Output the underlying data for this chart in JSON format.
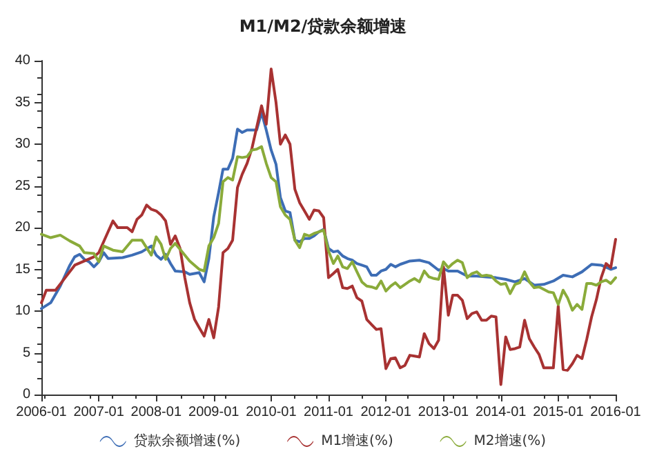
{
  "chart_data": {
    "type": "line",
    "title": "M1/M2/贷款余额增速",
    "xlim": [
      "2006-01",
      "2016-01"
    ],
    "xticks": [
      "2006-01",
      "2007-01",
      "2008-01",
      "2009-01",
      "2010-01",
      "2011-01",
      "2012-01",
      "2013-01",
      "2014-01",
      "2015-01",
      "2016-01"
    ],
    "ylim": [
      0,
      40
    ],
    "yticks": [
      0,
      5,
      10,
      15,
      20,
      25,
      30,
      35,
      40
    ],
    "grid": false,
    "legend": "bottom",
    "marker": "none",
    "line_style": "solid",
    "series": [
      {
        "name": "贷款余额增速(%)",
        "color": "#3d6db5",
        "x": [
          "2006-01",
          "2006-03",
          "2006-05",
          "2006-07",
          "2006-08",
          "2006-09",
          "2006-10",
          "2006-11",
          "2006-12",
          "2007-01",
          "2007-02",
          "2007-03",
          "2007-06",
          "2007-08",
          "2007-10",
          "2007-12",
          "2008-01",
          "2008-02",
          "2008-03",
          "2008-04",
          "2008-05",
          "2008-07",
          "2008-08",
          "2008-09",
          "2008-10",
          "2008-11",
          "2008-12",
          "2009-01",
          "2009-02",
          "2009-03",
          "2009-04",
          "2009-05",
          "2009-06",
          "2009-07",
          "2009-08",
          "2009-09",
          "2009-10",
          "2009-11",
          "2009-12",
          "2010-01",
          "2010-02",
          "2010-03",
          "2010-04",
          "2010-05",
          "2010-06",
          "2010-07",
          "2010-08",
          "2010-09",
          "2010-10",
          "2010-11",
          "2010-12",
          "2011-01",
          "2011-02",
          "2011-03",
          "2011-04",
          "2011-05",
          "2011-06",
          "2011-07",
          "2011-08",
          "2011-09",
          "2011-10",
          "2011-11",
          "2011-12",
          "2012-01",
          "2012-02",
          "2012-03",
          "2012-04",
          "2012-06",
          "2012-08",
          "2012-10",
          "2012-12",
          "2013-01",
          "2013-02",
          "2013-04",
          "2013-06",
          "2013-08",
          "2013-10",
          "2013-12",
          "2014-02",
          "2014-04",
          "2014-06",
          "2014-08",
          "2014-10",
          "2014-12",
          "2015-02",
          "2015-04",
          "2015-06",
          "2015-08",
          "2015-10",
          "2015-12",
          "2016-01"
        ],
        "values": [
          10.3,
          11,
          13,
          15.5,
          16.5,
          16.8,
          16.2,
          15.9,
          15.3,
          15.9,
          17,
          16.3,
          16.4,
          16.7,
          17.1,
          17.8,
          16.7,
          16.2,
          16.8,
          15.7,
          14.8,
          14.7,
          14.4,
          14.5,
          14.6,
          13.5,
          16.3,
          21.3,
          24.2,
          27,
          27,
          28.3,
          31.8,
          31.4,
          31.7,
          31.7,
          31.7,
          33.8,
          31.7,
          29.3,
          27.6,
          23.6,
          22,
          21.8,
          18.5,
          18.3,
          18.7,
          18.7,
          19,
          19.5,
          19.8,
          17.5,
          17.1,
          17.2,
          16.6,
          16.3,
          16.1,
          15.7,
          15.5,
          15.3,
          14.3,
          14.3,
          14.8,
          15,
          15.6,
          15.3,
          15.6,
          16,
          16.1,
          15.8,
          14.9,
          15.1,
          14.8,
          14.8,
          14.2,
          14.2,
          14.1,
          14,
          13.8,
          13.5,
          13.9,
          13.1,
          13.2,
          13.6,
          14.3,
          14.1,
          14.7,
          15.6,
          15.5,
          15,
          15.2
        ]
      },
      {
        "name": "M1增速(%)",
        "color": "#a83232",
        "x": [
          "2006-01",
          "2006-02",
          "2006-04",
          "2006-06",
          "2006-08",
          "2006-10",
          "2006-12",
          "2007-01",
          "2007-03",
          "2007-04",
          "2007-05",
          "2007-07",
          "2007-08",
          "2007-09",
          "2007-10",
          "2007-11",
          "2007-12",
          "2008-01",
          "2008-02",
          "2008-03",
          "2008-04",
          "2008-05",
          "2008-06",
          "2008-07",
          "2008-08",
          "2008-09",
          "2008-10",
          "2008-11",
          "2008-12",
          "2009-01",
          "2009-02",
          "2009-03",
          "2009-04",
          "2009-05",
          "2009-06",
          "2009-07",
          "2009-08",
          "2009-09",
          "2009-10",
          "2009-11",
          "2009-12",
          "2010-01",
          "2010-02",
          "2010-03",
          "2010-04",
          "2010-05",
          "2010-06",
          "2010-07",
          "2010-08",
          "2010-09",
          "2010-10",
          "2010-11",
          "2010-12",
          "2011-01",
          "2011-02",
          "2011-03",
          "2011-04",
          "2011-05",
          "2011-06",
          "2011-07",
          "2011-08",
          "2011-09",
          "2011-10",
          "2011-11",
          "2011-12",
          "2012-01",
          "2012-02",
          "2012-03",
          "2012-04",
          "2012-05",
          "2012-06",
          "2012-07",
          "2012-08",
          "2012-09",
          "2012-10",
          "2012-11",
          "2012-12",
          "2013-01",
          "2013-02",
          "2013-03",
          "2013-04",
          "2013-05",
          "2013-06",
          "2013-07",
          "2013-08",
          "2013-09",
          "2013-10",
          "2013-11",
          "2013-12",
          "2014-01",
          "2014-02",
          "2014-03",
          "2014-04",
          "2014-05",
          "2014-06",
          "2014-07",
          "2014-08",
          "2014-09",
          "2014-10",
          "2014-11",
          "2014-12",
          "2015-01",
          "2015-02",
          "2015-03",
          "2015-04",
          "2015-05",
          "2015-06",
          "2015-07",
          "2015-08",
          "2015-09",
          "2015-10",
          "2015-11",
          "2015-12",
          "2016-01"
        ],
        "values": [
          11,
          12.5,
          12.5,
          14,
          15.5,
          16,
          16.5,
          17,
          19.5,
          20.8,
          20,
          20,
          19.5,
          21,
          21.5,
          22.7,
          22.2,
          22,
          21.5,
          20.8,
          18,
          19,
          17.5,
          14,
          11,
          9,
          8,
          7,
          9,
          6.8,
          10.5,
          17,
          17.5,
          18.5,
          24.8,
          26.4,
          27.7,
          29.5,
          32,
          34.6,
          32.4,
          39,
          35,
          30,
          31.1,
          30,
          24.6,
          23,
          22,
          21,
          22.1,
          22,
          21.2,
          14,
          14.5,
          15,
          12.8,
          12.7,
          13,
          11.6,
          11.2,
          9,
          8.4,
          7.8,
          7.9,
          3.1,
          4.3,
          4.4,
          3.2,
          3.5,
          4.7,
          4.6,
          4.5,
          7.3,
          6.1,
          5.5,
          6.5,
          15.3,
          9.5,
          11.9,
          11.9,
          11.3,
          9.1,
          9.7,
          9.9,
          8.9,
          8.9,
          9.4,
          9.3,
          1.2,
          6.9,
          5.4,
          5.5,
          5.7,
          8.9,
          6.7,
          5.7,
          4.8,
          3.2,
          3.2,
          3.2,
          10.6,
          3,
          2.9,
          3.7,
          4.7,
          4.3,
          6.6,
          9.3,
          11.4,
          14,
          15.7,
          15.2,
          18.6
        ]
      },
      {
        "name": "M2增速(%)",
        "color": "#8aab3a",
        "x": [
          "2006-01",
          "2006-03",
          "2006-05",
          "2006-07",
          "2006-09",
          "2006-10",
          "2006-12",
          "2007-01",
          "2007-02",
          "2007-04",
          "2007-06",
          "2007-08",
          "2007-09",
          "2007-10",
          "2007-12",
          "2008-01",
          "2008-02",
          "2008-03",
          "2008-04",
          "2008-05",
          "2008-06",
          "2008-08",
          "2008-10",
          "2008-11",
          "2008-12",
          "2009-01",
          "2009-02",
          "2009-03",
          "2009-04",
          "2009-05",
          "2009-06",
          "2009-07",
          "2009-08",
          "2009-09",
          "2009-10",
          "2009-11",
          "2009-12",
          "2010-01",
          "2010-02",
          "2010-03",
          "2010-04",
          "2010-05",
          "2010-06",
          "2010-07",
          "2010-08",
          "2010-09",
          "2010-10",
          "2010-11",
          "2010-12",
          "2011-01",
          "2011-02",
          "2011-03",
          "2011-04",
          "2011-05",
          "2011-06",
          "2011-07",
          "2011-08",
          "2011-09",
          "2011-10",
          "2011-11",
          "2011-12",
          "2012-01",
          "2012-02",
          "2012-03",
          "2012-04",
          "2012-05",
          "2012-06",
          "2012-07",
          "2012-08",
          "2012-09",
          "2012-10",
          "2012-11",
          "2012-12",
          "2013-01",
          "2013-02",
          "2013-03",
          "2013-04",
          "2013-05",
          "2013-06",
          "2013-07",
          "2013-08",
          "2013-09",
          "2013-10",
          "2013-11",
          "2013-12",
          "2014-01",
          "2014-02",
          "2014-03",
          "2014-04",
          "2014-05",
          "2014-06",
          "2014-07",
          "2014-08",
          "2014-09",
          "2014-10",
          "2014-11",
          "2014-12",
          "2015-01",
          "2015-02",
          "2015-03",
          "2015-04",
          "2015-05",
          "2015-06",
          "2015-07",
          "2015-08",
          "2015-09",
          "2015-10",
          "2015-11",
          "2015-12",
          "2016-01"
        ],
        "values": [
          19.2,
          18.8,
          19.1,
          18.4,
          17.8,
          17,
          16.9,
          15.9,
          17.8,
          17.3,
          17.1,
          18.5,
          18.5,
          18.5,
          16.7,
          18.9,
          18,
          16.2,
          17.5,
          18.1,
          17.4,
          16,
          15,
          14.8,
          17.8,
          18.8,
          20.5,
          25.5,
          26,
          25.7,
          28.5,
          28.4,
          28.5,
          29.3,
          29.4,
          29.7,
          27.7,
          26,
          25.5,
          22.5,
          21.5,
          21,
          18.5,
          17.6,
          19.2,
          19,
          19.3,
          19.5,
          19.7,
          17.2,
          15.7,
          16.6,
          15.3,
          15.1,
          15.9,
          14.7,
          13.5,
          13,
          12.9,
          12.7,
          13.6,
          12.4,
          13,
          13.4,
          12.8,
          13.2,
          13.6,
          13.9,
          13.5,
          14.8,
          14.1,
          13.9,
          13.8,
          15.9,
          15.2,
          15.7,
          16.1,
          15.8,
          14,
          14.5,
          14.7,
          14.2,
          14.3,
          14.2,
          13.6,
          13.2,
          13.3,
          12.1,
          13.2,
          13.4,
          14.7,
          13.5,
          12.8,
          12.9,
          12.6,
          12.3,
          12.2,
          10.8,
          12.5,
          11.6,
          10.1,
          10.8,
          10.2,
          13.3,
          13.3,
          13.1,
          13.5,
          13.7,
          13.3,
          14
        ]
      }
    ]
  }
}
